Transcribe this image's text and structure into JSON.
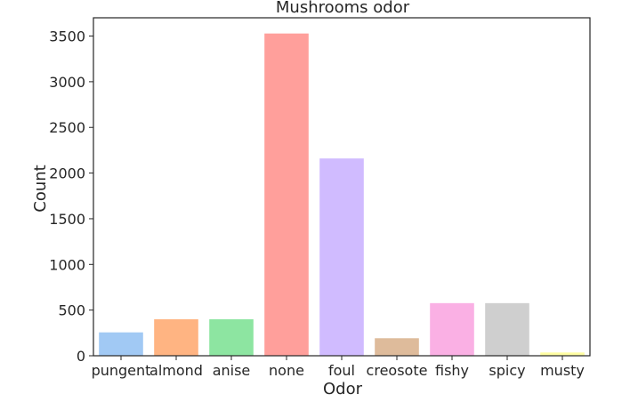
{
  "chart_data": {
    "type": "bar",
    "title": "Mushrooms odor",
    "xlabel": "Odor",
    "ylabel": "Count",
    "categories": [
      "pungent",
      "almond",
      "anise",
      "none",
      "foul",
      "creosote",
      "fishy",
      "spicy",
      "musty"
    ],
    "values": [
      256,
      400,
      400,
      3528,
      2160,
      192,
      576,
      576,
      36
    ],
    "colors": [
      "#a1c9f4",
      "#ffb482",
      "#8de5a1",
      "#ff9f9b",
      "#d0bbff",
      "#debb9b",
      "#fab0e4",
      "#cfcfcf",
      "#fffea3"
    ],
    "ylim": [
      0,
      3700
    ],
    "yticks": [
      0,
      500,
      1000,
      1500,
      2000,
      2500,
      3000,
      3500
    ],
    "grid": false,
    "legend": "none"
  }
}
